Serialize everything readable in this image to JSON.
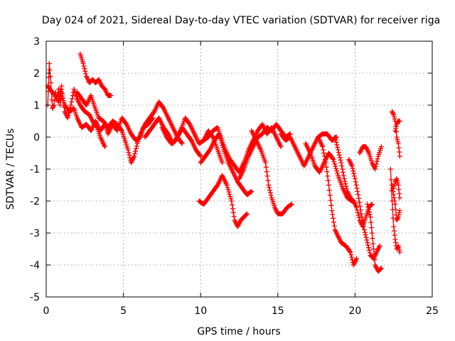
{
  "chart_data": {
    "type": "scatter",
    "title": "Day 024 of 2021, Sidereal Day-to-day VTEC variation (SDTVAR) for receiver riga",
    "xlabel": "GPS time / hours",
    "ylabel": "SDTVAR / TECUs",
    "xlim": [
      0,
      25
    ],
    "ylim": [
      -5,
      3
    ],
    "xticks": [
      "0",
      "5",
      "10",
      "15",
      "20",
      "25"
    ],
    "yticks": [
      "-5",
      "-4",
      "-3",
      "-2",
      "-1",
      "0",
      "1",
      "2",
      "3"
    ],
    "grid": true,
    "marker": "+",
    "color": "#ff0000",
    "series": [
      {
        "name": "trace-1",
        "points": [
          [
            0.1,
            1.0
          ],
          [
            0.2,
            2.3
          ],
          [
            0.3,
            1.7
          ],
          [
            0.4,
            0.9
          ],
          [
            0.5,
            1.0
          ],
          [
            0.6,
            1.4
          ],
          [
            0.7,
            1.2
          ],
          [
            0.8,
            1.5
          ],
          [
            0.9,
            1.0
          ],
          [
            1.0,
            1.6
          ]
        ]
      },
      {
        "name": "trace-2",
        "points": [
          [
            0.1,
            1.6
          ],
          [
            0.4,
            1.4
          ],
          [
            0.6,
            1.3
          ],
          [
            0.8,
            1.1
          ],
          [
            1.0,
            1.5
          ],
          [
            1.2,
            0.8
          ],
          [
            1.4,
            0.6
          ],
          [
            1.6,
            1.0
          ],
          [
            1.8,
            1.5
          ],
          [
            2.0,
            1.2
          ],
          [
            2.2,
            1.0
          ],
          [
            2.5,
            0.8
          ],
          [
            2.8,
            0.7
          ],
          [
            3.0,
            0.5
          ],
          [
            3.3,
            0.3
          ],
          [
            3.5,
            0.0
          ],
          [
            3.8,
            -0.3
          ]
        ]
      },
      {
        "name": "trace-3",
        "points": [
          [
            0.9,
            1.5
          ],
          [
            1.2,
            1.0
          ],
          [
            1.5,
            0.8
          ],
          [
            1.8,
            0.9
          ],
          [
            2.0,
            0.6
          ],
          [
            2.3,
            0.3
          ],
          [
            2.6,
            0.4
          ],
          [
            2.9,
            0.2
          ],
          [
            3.2,
            0.5
          ],
          [
            3.5,
            0.2
          ],
          [
            3.8,
            0.4
          ],
          [
            4.0,
            0.1
          ],
          [
            4.3,
            0.4
          ],
          [
            4.6,
            0.2
          ],
          [
            4.9,
            0.6
          ],
          [
            5.2,
            0.4
          ],
          [
            5.5,
            0.1
          ],
          [
            5.8,
            -0.1
          ],
          [
            6.1,
            0.0
          ],
          [
            6.3,
            0.3
          ],
          [
            6.6,
            0.4
          ],
          [
            6.9,
            0.6
          ]
        ]
      },
      {
        "name": "trace-4",
        "points": [
          [
            2.2,
            2.6
          ],
          [
            2.4,
            2.3
          ],
          [
            2.6,
            1.9
          ],
          [
            2.8,
            1.7
          ],
          [
            3.0,
            1.8
          ],
          [
            3.2,
            1.7
          ],
          [
            3.4,
            1.8
          ],
          [
            3.6,
            1.6
          ],
          [
            3.8,
            1.5
          ],
          [
            4.0,
            1.3
          ],
          [
            4.2,
            1.3
          ]
        ]
      },
      {
        "name": "trace-5",
        "points": [
          [
            2.0,
            1.4
          ],
          [
            2.3,
            1.2
          ],
          [
            2.6,
            1.0
          ],
          [
            2.9,
            1.3
          ],
          [
            3.1,
            1.0
          ],
          [
            3.4,
            0.6
          ],
          [
            3.7,
            0.5
          ],
          [
            4.0,
            0.3
          ],
          [
            4.3,
            0.5
          ],
          [
            4.6,
            0.4
          ],
          [
            4.9,
            0.2
          ],
          [
            5.1,
            -0.1
          ],
          [
            5.3,
            -0.4
          ],
          [
            5.5,
            -0.8
          ],
          [
            5.7,
            -0.6
          ],
          [
            5.9,
            -0.2
          ],
          [
            6.1,
            0.1
          ],
          [
            6.4,
            0.4
          ],
          [
            6.7,
            0.6
          ],
          [
            7.0,
            0.8
          ],
          [
            7.3,
            1.1
          ],
          [
            7.6,
            0.9
          ],
          [
            7.9,
            0.6
          ],
          [
            8.2,
            0.3
          ],
          [
            8.5,
            0.0
          ],
          [
            8.8,
            -0.2
          ]
        ]
      },
      {
        "name": "trace-6",
        "points": [
          [
            6.4,
            0.0
          ],
          [
            6.7,
            0.2
          ],
          [
            7.0,
            0.4
          ],
          [
            7.3,
            0.6
          ],
          [
            7.6,
            0.3
          ],
          [
            7.9,
            0.1
          ],
          [
            8.2,
            -0.2
          ],
          [
            8.5,
            0.0
          ],
          [
            8.8,
            0.3
          ],
          [
            9.1,
            0.1
          ],
          [
            9.4,
            -0.1
          ],
          [
            9.7,
            -0.4
          ],
          [
            10.0,
            -0.6
          ]
        ]
      },
      {
        "name": "trace-7",
        "points": [
          [
            7.5,
            0.3
          ],
          [
            7.8,
            0.0
          ],
          [
            8.1,
            -0.2
          ],
          [
            8.4,
            -0.1
          ],
          [
            8.7,
            0.2
          ],
          [
            9.0,
            0.6
          ],
          [
            9.3,
            0.4
          ],
          [
            9.6,
            0.1
          ],
          [
            9.9,
            -0.2
          ],
          [
            10.2,
            -0.1
          ],
          [
            10.5,
            0.2
          ],
          [
            10.8,
            0.0
          ],
          [
            11.1,
            -0.4
          ],
          [
            11.4,
            -0.8
          ]
        ]
      },
      {
        "name": "trace-8",
        "points": [
          [
            9.9,
            -2.0
          ],
          [
            10.2,
            -2.1
          ],
          [
            10.5,
            -1.9
          ],
          [
            10.8,
            -1.7
          ],
          [
            11.1,
            -1.5
          ],
          [
            11.4,
            -1.2
          ],
          [
            11.7,
            -1.5
          ],
          [
            12.0,
            -2.0
          ],
          [
            12.2,
            -2.6
          ],
          [
            12.4,
            -2.8
          ],
          [
            12.6,
            -2.6
          ],
          [
            12.8,
            -2.5
          ],
          [
            13.0,
            -2.4
          ]
        ]
      },
      {
        "name": "trace-9",
        "points": [
          [
            10.0,
            -0.8
          ],
          [
            10.3,
            -0.6
          ],
          [
            10.6,
            -0.4
          ],
          [
            10.9,
            -0.1
          ],
          [
            11.2,
            0.1
          ],
          [
            11.5,
            -0.4
          ],
          [
            11.8,
            -0.8
          ],
          [
            12.1,
            -1.1
          ],
          [
            12.4,
            -1.4
          ],
          [
            12.7,
            -1.6
          ],
          [
            13.0,
            -1.8
          ],
          [
            13.3,
            -1.7
          ]
        ]
      },
      {
        "name": "trace-10",
        "points": [
          [
            10.2,
            -0.1
          ],
          [
            10.5,
            0.0
          ],
          [
            10.8,
            0.2
          ],
          [
            11.1,
            0.3
          ],
          [
            11.3,
            0.0
          ],
          [
            11.6,
            -0.4
          ],
          [
            11.9,
            -0.7
          ],
          [
            12.2,
            -0.9
          ],
          [
            12.5,
            -1.1
          ],
          [
            12.8,
            -0.8
          ],
          [
            13.1,
            -0.4
          ],
          [
            13.4,
            -0.1
          ],
          [
            13.7,
            0.2
          ],
          [
            14.0,
            0.4
          ],
          [
            14.3,
            0.1
          ],
          [
            14.6,
            0.3
          ],
          [
            14.9,
            0.0
          ],
          [
            15.2,
            -0.3
          ]
        ]
      },
      {
        "name": "trace-11",
        "points": [
          [
            12.5,
            -1.3
          ],
          [
            12.8,
            -1.0
          ],
          [
            13.1,
            -0.6
          ],
          [
            13.4,
            -0.3
          ],
          [
            13.7,
            0.0
          ],
          [
            14.0,
            0.1
          ],
          [
            14.3,
            0.3
          ],
          [
            14.6,
            0.2
          ],
          [
            14.9,
            0.4
          ],
          [
            15.2,
            0.2
          ],
          [
            15.5,
            0.0
          ],
          [
            15.8,
            0.1
          ]
        ]
      },
      {
        "name": "trace-12",
        "points": [
          [
            13.3,
            0.2
          ],
          [
            13.6,
            -0.1
          ],
          [
            13.9,
            -0.4
          ],
          [
            14.2,
            -0.8
          ],
          [
            14.4,
            -1.5
          ],
          [
            14.6,
            -1.9
          ],
          [
            14.8,
            -2.2
          ],
          [
            15.0,
            -2.4
          ],
          [
            15.3,
            -2.4
          ],
          [
            15.6,
            -2.2
          ],
          [
            15.9,
            -2.1
          ]
        ]
      },
      {
        "name": "trace-13",
        "points": [
          [
            15.2,
            0.1
          ],
          [
            15.5,
            -0.1
          ],
          [
            15.8,
            0.0
          ],
          [
            16.1,
            -0.3
          ],
          [
            16.4,
            -0.6
          ],
          [
            16.7,
            -0.9
          ],
          [
            17.0,
            -0.6
          ],
          [
            17.3,
            -0.3
          ],
          [
            17.6,
            0.0
          ],
          [
            17.9,
            0.1
          ],
          [
            18.2,
            0.1
          ],
          [
            18.5,
            -0.1
          ],
          [
            18.8,
            0.0
          ]
        ]
      },
      {
        "name": "trace-14",
        "points": [
          [
            16.8,
            -0.2
          ],
          [
            17.1,
            -0.5
          ],
          [
            17.4,
            -0.9
          ],
          [
            17.7,
            -1.1
          ],
          [
            18.0,
            -0.8
          ],
          [
            18.3,
            -0.5
          ],
          [
            18.6,
            -0.7
          ],
          [
            18.9,
            -1.2
          ],
          [
            19.2,
            -1.6
          ],
          [
            19.5,
            -1.9
          ],
          [
            19.8,
            -2.0
          ]
        ]
      },
      {
        "name": "trace-15",
        "points": [
          [
            17.6,
            0.0
          ],
          [
            17.9,
            -0.3
          ],
          [
            18.1,
            -0.8
          ],
          [
            18.3,
            -1.5
          ],
          [
            18.5,
            -2.3
          ],
          [
            18.7,
            -2.9
          ],
          [
            18.9,
            -3.1
          ],
          [
            19.1,
            -3.3
          ],
          [
            19.4,
            -3.4
          ],
          [
            19.7,
            -3.6
          ],
          [
            19.9,
            -4.0
          ],
          [
            20.1,
            -3.8
          ]
        ]
      },
      {
        "name": "trace-16",
        "points": [
          [
            18.7,
            0.0
          ],
          [
            18.9,
            -0.4
          ],
          [
            19.1,
            -0.8
          ],
          [
            19.3,
            -1.3
          ],
          [
            19.5,
            -1.7
          ],
          [
            19.7,
            -1.9
          ],
          [
            19.9,
            -2.0
          ],
          [
            20.1,
            -2.2
          ],
          [
            20.3,
            -2.6
          ],
          [
            20.5,
            -2.8
          ],
          [
            20.7,
            -2.5
          ],
          [
            20.9,
            -2.2
          ],
          [
            21.1,
            -2.1
          ]
        ]
      },
      {
        "name": "trace-17",
        "points": [
          [
            19.6,
            -0.7
          ],
          [
            19.8,
            -0.9
          ],
          [
            20.0,
            -1.3
          ],
          [
            20.2,
            -1.8
          ],
          [
            20.4,
            -2.4
          ],
          [
            20.6,
            -2.9
          ],
          [
            20.8,
            -3.3
          ],
          [
            21.0,
            -3.7
          ],
          [
            21.2,
            -3.8
          ],
          [
            21.4,
            -3.6
          ],
          [
            21.6,
            -3.4
          ]
        ]
      },
      {
        "name": "trace-18",
        "points": [
          [
            20.3,
            -0.5
          ],
          [
            20.5,
            -0.3
          ],
          [
            20.7,
            -0.3
          ],
          [
            20.9,
            -0.5
          ],
          [
            21.1,
            -0.8
          ],
          [
            21.3,
            -1.0
          ],
          [
            21.5,
            -0.6
          ],
          [
            21.7,
            -0.3
          ]
        ]
      },
      {
        "name": "trace-19",
        "points": [
          [
            20.8,
            -2.1
          ],
          [
            21.0,
            -2.5
          ],
          [
            21.1,
            -3.0
          ],
          [
            21.2,
            -3.5
          ],
          [
            21.3,
            -4.0
          ],
          [
            21.5,
            -4.2
          ],
          [
            21.7,
            -4.1
          ]
        ]
      },
      {
        "name": "trace-20",
        "points": [
          [
            22.3,
            -1.0
          ],
          [
            22.4,
            -2.0
          ],
          [
            22.5,
            -2.8
          ],
          [
            22.6,
            -3.2
          ],
          [
            22.7,
            -3.5
          ],
          [
            22.8,
            -3.4
          ],
          [
            22.9,
            -3.6
          ]
        ]
      },
      {
        "name": "trace-21",
        "points": [
          [
            22.4,
            -1.5
          ],
          [
            22.5,
            -1.8
          ],
          [
            22.6,
            -2.1
          ],
          [
            22.7,
            -2.6
          ],
          [
            22.8,
            -2.5
          ],
          [
            22.9,
            -2.3
          ]
        ]
      },
      {
        "name": "trace-22",
        "points": [
          [
            22.5,
            -1.6
          ],
          [
            22.6,
            -1.4
          ],
          [
            22.7,
            -1.3
          ],
          [
            22.8,
            -1.5
          ],
          [
            22.9,
            -1.9
          ]
        ]
      },
      {
        "name": "trace-23",
        "points": [
          [
            22.4,
            0.8
          ],
          [
            22.5,
            0.7
          ],
          [
            22.6,
            0.5
          ],
          [
            22.7,
            0.0
          ],
          [
            22.8,
            -0.2
          ],
          [
            22.9,
            -0.6
          ]
        ]
      },
      {
        "name": "trace-24",
        "points": [
          [
            22.6,
            0.2
          ],
          [
            22.7,
            0.4
          ],
          [
            22.8,
            0.5
          ],
          [
            22.9,
            0.5
          ]
        ]
      }
    ]
  }
}
